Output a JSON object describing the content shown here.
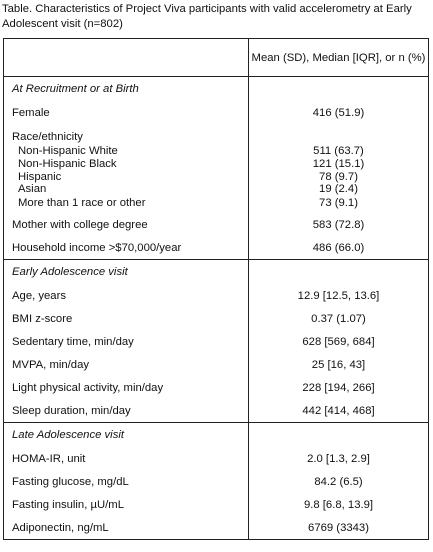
{
  "caption": "Table. Characteristics of Project Viva participants with valid accelerometry at Early Adolescent visit  (n=802)",
  "header": {
    "value_col": "Mean (SD), Median [IQR], or n (%)"
  },
  "sections": [
    {
      "title": "At Recruitment or at Birth",
      "rows": [
        {
          "label": "Female",
          "value": "416 (51.9)"
        }
      ],
      "race": {
        "title": "Race/ethnicity",
        "items": [
          {
            "label": "Non-Hispanic White",
            "value": "511 (63.7)"
          },
          {
            "label": "Non-Hispanic Black",
            "value": "121 (15.1)"
          },
          {
            "label": "Hispanic",
            "value": "78 (9.7)"
          },
          {
            "label": "Asian",
            "value": "19 (2.4)"
          },
          {
            "label": "More than 1 race or other",
            "value": "73 (9.1)"
          }
        ]
      },
      "rows_after": [
        {
          "label": "Mother with college degree",
          "value": "583 (72.8)"
        },
        {
          "label": "Household income >$70,000/year",
          "value": "486 (66.0)"
        }
      ]
    },
    {
      "title": "Early Adolescence visit",
      "rows": [
        {
          "label": "Age, years",
          "value": "12.9 [12.5, 13.6]"
        },
        {
          "label": "BMI z-score",
          "value": "0.37 (1.07)"
        },
        {
          "label": "Sedentary time, min/day",
          "value": "628 [569, 684]"
        },
        {
          "label": "MVPA, min/day",
          "value": "25 [16, 43]"
        },
        {
          "label": "Light physical activity, min/day",
          "value": "228 [194, 266]"
        },
        {
          "label": "Sleep duration, min/day",
          "value": "442 [414, 468]"
        }
      ]
    },
    {
      "title": "Late Adolescence visit",
      "rows": [
        {
          "label": "HOMA-IR, unit",
          "value": "2.0 [1.3, 2.9]"
        },
        {
          "label": "Fasting glucose, mg/dL",
          "value": "84.2 (6.5)"
        },
        {
          "label": "Fasting insulin, µU/mL",
          "value": "9.8 [6.8, 13.9]"
        },
        {
          "label": "Adiponectin, ng/mL",
          "value": "6769 (3343)"
        }
      ]
    }
  ]
}
